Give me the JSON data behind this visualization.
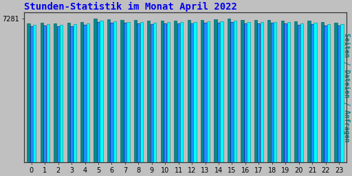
{
  "title": "Stunden-Statistik im Monat April 2022",
  "title_color": "#0000EE",
  "title_fontsize": 10,
  "ylabel_right": "Seiten / Dateien / Anfragen",
  "ylabel_right_color": "#008080",
  "ylabel_right_fontsize": 7,
  "background_color": "#C0C0C0",
  "plot_bg_color": "#C0C0C0",
  "x_labels": [
    "0",
    "1",
    "2",
    "3",
    "4",
    "5",
    "6",
    "7",
    "8",
    "9",
    "10",
    "11",
    "12",
    "13",
    "14",
    "15",
    "16",
    "17",
    "18",
    "19",
    "20",
    "21",
    "22",
    "23"
  ],
  "ytick_label": "7281",
  "ytick_value": 7281,
  "bar_colors": [
    "#008B8B",
    "#1E90FF",
    "#00FFFF"
  ],
  "edge_colors": [
    "#005555",
    "#00008B",
    "#008888"
  ],
  "ylim_max": 7600,
  "hours": [
    0,
    1,
    2,
    3,
    4,
    5,
    6,
    7,
    8,
    9,
    10,
    11,
    12,
    13,
    14,
    15,
    16,
    17,
    18,
    19,
    20,
    21,
    22,
    23
  ],
  "values_teal": [
    7050,
    7080,
    7060,
    7070,
    7130,
    7281,
    7250,
    7230,
    7210,
    7180,
    7200,
    7200,
    7220,
    7230,
    7240,
    7281,
    7220,
    7220,
    7210,
    7200,
    7150,
    7170,
    7110,
    7090
  ],
  "values_blue": [
    6900,
    6940,
    6910,
    6920,
    6980,
    7120,
    7080,
    7070,
    7050,
    7020,
    7040,
    7040,
    7060,
    7070,
    7090,
    7110,
    7050,
    7060,
    7070,
    7040,
    6980,
    7010,
    6950,
    6940
  ],
  "values_cyan": [
    6980,
    7010,
    6990,
    7000,
    7050,
    7190,
    7150,
    7130,
    7120,
    7090,
    7110,
    7110,
    7130,
    7140,
    7150,
    7170,
    7110,
    7120,
    7130,
    7100,
    7050,
    7080,
    7020,
    7010
  ]
}
